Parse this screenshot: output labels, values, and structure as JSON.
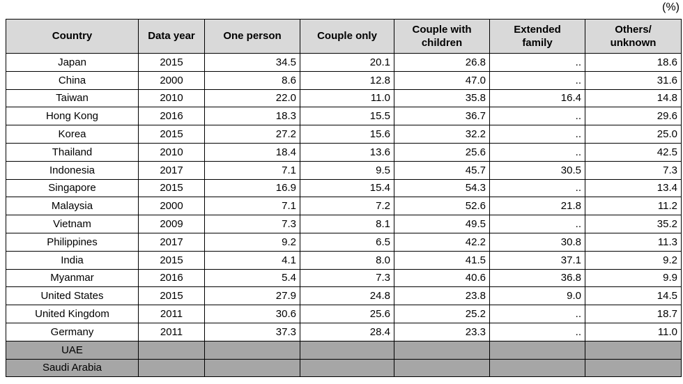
{
  "page": {
    "unit_label": "(%)"
  },
  "chart_data": {
    "type": "table",
    "unit": "(%)",
    "columns": [
      "Country",
      "Data year",
      "One person",
      "Couple only",
      "Couple with\nchildren",
      "Extended\nfamily",
      "Others/\nunknown"
    ],
    "column_align": [
      "center",
      "center",
      "right",
      "right",
      "right",
      "right",
      "right"
    ],
    "rows": [
      {
        "cells": [
          "Japan",
          "2015",
          "34.5",
          "20.1",
          "26.8",
          "..",
          "18.6"
        ],
        "highlight": false
      },
      {
        "cells": [
          "China",
          "2000",
          "8.6",
          "12.8",
          "47.0",
          "..",
          "31.6"
        ],
        "highlight": false
      },
      {
        "cells": [
          "Taiwan",
          "2010",
          "22.0",
          "11.0",
          "35.8",
          "16.4",
          "14.8"
        ],
        "highlight": false
      },
      {
        "cells": [
          "Hong Kong",
          "2016",
          "18.3",
          "15.5",
          "36.7",
          "..",
          "29.6"
        ],
        "highlight": false
      },
      {
        "cells": [
          "Korea",
          "2015",
          "27.2",
          "15.6",
          "32.2",
          "..",
          "25.0"
        ],
        "highlight": false
      },
      {
        "cells": [
          "Thailand",
          "2010",
          "18.4",
          "13.6",
          "25.6",
          "..",
          "42.5"
        ],
        "highlight": false
      },
      {
        "cells": [
          "Indonesia",
          "2017",
          "7.1",
          "9.5",
          "45.7",
          "30.5",
          "7.3"
        ],
        "highlight": false
      },
      {
        "cells": [
          "Singapore",
          "2015",
          "16.9",
          "15.4",
          "54.3",
          "..",
          "13.4"
        ],
        "highlight": false
      },
      {
        "cells": [
          "Malaysia",
          "2000",
          "7.1",
          "7.2",
          "52.6",
          "21.8",
          "11.2"
        ],
        "highlight": false
      },
      {
        "cells": [
          "Vietnam",
          "2009",
          "7.3",
          "8.1",
          "49.5",
          "..",
          "35.2"
        ],
        "highlight": false
      },
      {
        "cells": [
          "Philippines",
          "2017",
          "9.2",
          "6.5",
          "42.2",
          "30.8",
          "11.3"
        ],
        "highlight": false
      },
      {
        "cells": [
          "India",
          "2015",
          "4.1",
          "8.0",
          "41.5",
          "37.1",
          "9.2"
        ],
        "highlight": false
      },
      {
        "cells": [
          "Myanmar",
          "2016",
          "5.4",
          "7.3",
          "40.6",
          "36.8",
          "9.9"
        ],
        "highlight": false
      },
      {
        "cells": [
          "United States",
          "2015",
          "27.9",
          "24.8",
          "23.8",
          "9.0",
          "14.5"
        ],
        "highlight": false
      },
      {
        "cells": [
          "United Kingdom",
          "2011",
          "30.6",
          "25.6",
          "25.2",
          "..",
          "18.7"
        ],
        "highlight": false
      },
      {
        "cells": [
          "Germany",
          "2011",
          "37.3",
          "28.4",
          "23.3",
          "..",
          "11.0"
        ],
        "highlight": false
      },
      {
        "cells": [
          "UAE",
          "",
          "",
          "",
          "",
          "",
          ""
        ],
        "highlight": true
      },
      {
        "cells": [
          "Saudi Arabia",
          "",
          "",
          "",
          "",
          "",
          ""
        ],
        "highlight": true
      }
    ],
    "colors": {
      "header_bg": "#d9d9d9",
      "highlight_bg": "#a6a6a6",
      "border": "#000000",
      "text": "#000000"
    }
  }
}
